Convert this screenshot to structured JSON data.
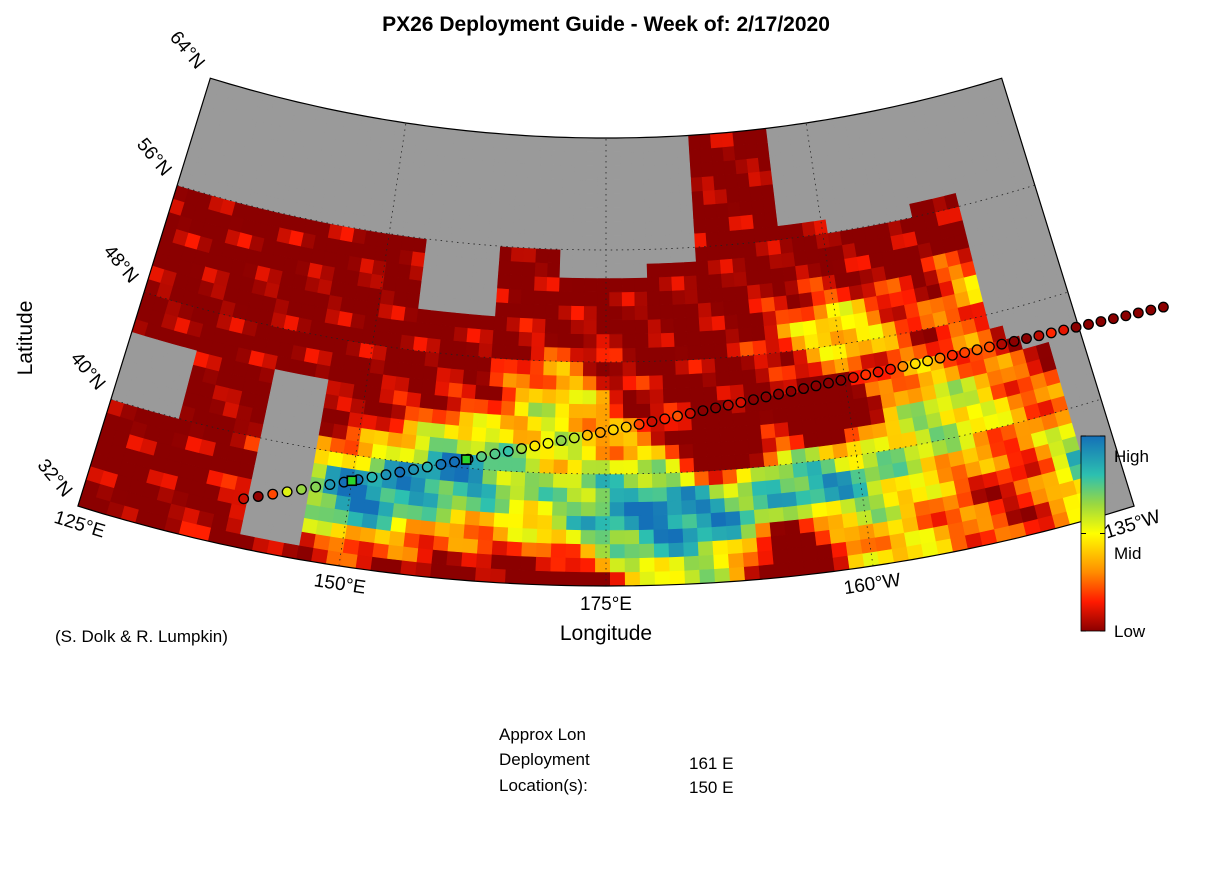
{
  "title": "PX26 Deployment Guide - Week of: 2/17/2020",
  "axes": {
    "xlabel": "Longitude",
    "ylabel": "Latitude"
  },
  "lat_ticks": [
    "64°N",
    "56°N",
    "48°N",
    "40°N",
    "32°N"
  ],
  "lon_ticks": [
    "125°E",
    "150°E",
    "175°E",
    "160°W",
    "135°W"
  ],
  "credit": "(S. Dolk & R. Lumpkin)",
  "colorbar": {
    "labels": [
      "High",
      "Mid",
      "Low"
    ],
    "levels": [
      1.0,
      0.5,
      0.0
    ]
  },
  "deployment": {
    "lines": [
      "Approx Lon",
      "Deployment",
      "Location(s):"
    ],
    "values": [
      "161 E",
      "150 E"
    ]
  },
  "colors": {
    "land": "#9a9a9a",
    "low": "#8b0000",
    "mid": "#ffff00",
    "high": "#1470b8"
  },
  "chart_data": {
    "type": "heatmap",
    "title": "PX26 Deployment Guide - Week of: 2/17/2020",
    "xlabel": "Longitude",
    "ylabel": "Latitude",
    "lon_range": [
      "125°E",
      "135°W"
    ],
    "lat_range": [
      "32°N",
      "64°N"
    ],
    "colorbar": [
      "Low",
      "Mid",
      "High"
    ],
    "track": {
      "description": "ship track",
      "start_lon_east": 140,
      "end_lon_east": 234,
      "n_points": 72
    },
    "deployments_lon": [
      "161 E",
      "150 E"
    ]
  }
}
